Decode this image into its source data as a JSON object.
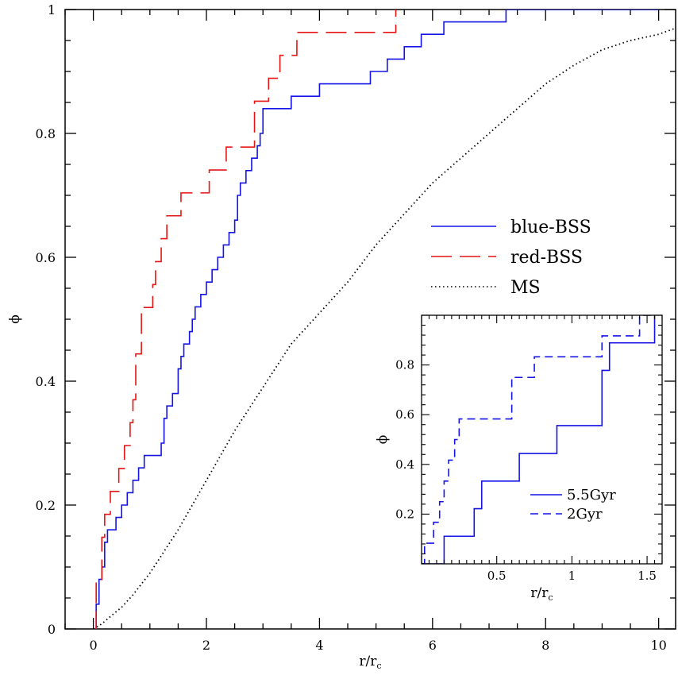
{
  "chart_data": [
    {
      "type": "line",
      "title": "",
      "xlabel": "r/r",
      "xlabel_sub": "c",
      "ylabel": "ϕ",
      "xlim": [
        -0.5,
        10.3
      ],
      "ylim": [
        0,
        1
      ],
      "xticks": [
        0,
        2,
        4,
        6,
        8,
        10
      ],
      "xtick_labels": [
        "0",
        "2",
        "4",
        "6",
        "8",
        "10"
      ],
      "yticks": [
        0,
        0.2,
        0.4,
        0.6,
        0.8,
        1
      ],
      "ytick_labels": [
        "0",
        "0.2",
        "0.4",
        "0.6",
        "0.8",
        "1"
      ],
      "grid": false,
      "legend_position": "right",
      "series": [
        {
          "name": "blue-BSS",
          "color": "#1414e6",
          "style": "solid",
          "step": true,
          "x": [
            0.0,
            0.05,
            0.1,
            0.15,
            0.2,
            0.25,
            0.3,
            0.4,
            0.5,
            0.6,
            0.7,
            0.8,
            0.9,
            1.2,
            1.25,
            1.3,
            1.4,
            1.5,
            1.55,
            1.6,
            1.7,
            1.75,
            1.8,
            1.9,
            2.0,
            2.1,
            2.2,
            2.3,
            2.4,
            2.5,
            2.55,
            2.6,
            2.7,
            2.8,
            2.9,
            2.95,
            3.0,
            3.5,
            4.0,
            4.9,
            5.2,
            5.5,
            5.8,
            6.2,
            7.3,
            7.6,
            7.8,
            8.0,
            8.4,
            8.6,
            9.1,
            9.8,
            10.0
          ],
          "y": [
            0.0,
            0.04,
            0.08,
            0.1,
            0.14,
            0.16,
            0.16,
            0.18,
            0.2,
            0.22,
            0.24,
            0.26,
            0.28,
            0.3,
            0.34,
            0.36,
            0.38,
            0.42,
            0.44,
            0.46,
            0.48,
            0.5,
            0.52,
            0.54,
            0.56,
            0.58,
            0.6,
            0.62,
            0.64,
            0.66,
            0.7,
            0.72,
            0.74,
            0.76,
            0.78,
            0.8,
            0.84,
            0.86,
            0.88,
            0.9,
            0.92,
            0.94,
            0.96,
            0.98,
            1.0,
            1.0,
            1.0,
            1.0,
            1.0,
            1.0,
            1.0,
            1.0,
            1.0
          ]
        },
        {
          "name": "red-BSS",
          "color": "#e61414",
          "style": "dashed",
          "step": true,
          "x": [
            0.0,
            0.05,
            0.15,
            0.2,
            0.3,
            0.45,
            0.55,
            0.65,
            0.7,
            0.75,
            0.85,
            1.05,
            1.1,
            1.2,
            1.3,
            1.55,
            2.05,
            2.35,
            2.85,
            3.1,
            3.3,
            3.6,
            5.35
          ],
          "y": [
            0.0,
            0.074,
            0.148,
            0.185,
            0.222,
            0.259,
            0.296,
            0.333,
            0.37,
            0.444,
            0.519,
            0.556,
            0.593,
            0.63,
            0.667,
            0.704,
            0.741,
            0.778,
            0.852,
            0.889,
            0.926,
            0.963,
            1.0
          ]
        },
        {
          "name": "MS",
          "color": "#000000",
          "style": "dotted",
          "step": false,
          "x": [
            0.0,
            0.1,
            0.2,
            0.3,
            0.5,
            0.7,
            1.0,
            1.5,
            2.0,
            2.5,
            3.0,
            3.5,
            4.0,
            4.5,
            5.0,
            5.5,
            6.0,
            6.5,
            7.0,
            7.5,
            8.0,
            8.5,
            9.0,
            9.5,
            10.0,
            10.3
          ],
          "y": [
            0.0,
            0.005,
            0.012,
            0.02,
            0.035,
            0.055,
            0.09,
            0.16,
            0.24,
            0.32,
            0.39,
            0.46,
            0.51,
            0.56,
            0.62,
            0.67,
            0.72,
            0.76,
            0.8,
            0.84,
            0.88,
            0.91,
            0.935,
            0.95,
            0.96,
            0.97
          ]
        }
      ]
    },
    {
      "type": "line",
      "title": "",
      "xlabel": "r/r",
      "xlabel_sub": "c",
      "ylabel": "ϕ",
      "xlim": [
        0,
        1.6
      ],
      "ylim": [
        0,
        1
      ],
      "xticks": [
        0.5,
        1,
        1.5
      ],
      "xtick_labels": [
        "0.5",
        "1",
        "1.5"
      ],
      "yticks": [
        0.2,
        0.4,
        0.6,
        0.8
      ],
      "ytick_labels": [
        "0.2",
        "0.4",
        "0.6",
        "0.8"
      ],
      "grid": false,
      "legend_position": "bottom-right",
      "series": [
        {
          "name": "5.5Gyr",
          "color": "#1414e6",
          "style": "solid",
          "step": true,
          "x": [
            0.0,
            0.15,
            0.35,
            0.4,
            0.65,
            0.9,
            1.2,
            1.25,
            1.55
          ],
          "y": [
            0.0,
            0.111,
            0.222,
            0.333,
            0.444,
            0.556,
            0.778,
            0.889,
            1.0
          ]
        },
        {
          "name": "2Gyr",
          "color": "#1414e6",
          "style": "dashed",
          "step": true,
          "x": [
            0.0,
            0.02,
            0.08,
            0.12,
            0.15,
            0.18,
            0.22,
            0.25,
            0.6,
            0.75,
            1.2,
            1.25,
            1.45,
            1.55
          ],
          "y": [
            0.0,
            0.083,
            0.167,
            0.25,
            0.333,
            0.417,
            0.5,
            0.583,
            0.75,
            0.833,
            0.917,
            0.917,
            1.0,
            1.0
          ]
        }
      ]
    }
  ]
}
